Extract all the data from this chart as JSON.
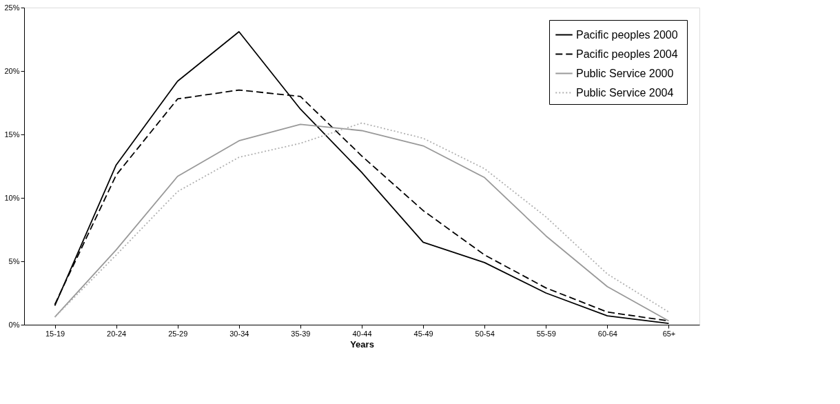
{
  "chart_data": {
    "type": "line",
    "xlabel": "Years",
    "categories": [
      "15-19",
      "20-24",
      "25-29",
      "30-34",
      "35-39",
      "40-44",
      "45-49",
      "50-54",
      "55-59",
      "60-64",
      "65+"
    ],
    "series": [
      {
        "name": "Pacific  peoples 2000",
        "color": "#000000",
        "line_style": "solid",
        "values": [
          1.5,
          12.6,
          19.2,
          23.1,
          17.0,
          12.0,
          6.5,
          4.9,
          2.5,
          0.7,
          0.1
        ]
      },
      {
        "name": "Pacific  peoples 2004",
        "color": "#000000",
        "line_style": "dashed",
        "values": [
          1.6,
          11.8,
          17.8,
          18.5,
          18.0,
          13.3,
          9.0,
          5.5,
          2.9,
          1.0,
          0.3
        ]
      },
      {
        "name": "Public Service  2000",
        "color": "#999999",
        "line_style": "solid",
        "values": [
          0.6,
          5.9,
          11.7,
          14.5,
          15.8,
          15.3,
          14.1,
          11.6,
          7.0,
          3.0,
          0.3
        ]
      },
      {
        "name": "Public Service  2004",
        "color": "#b0b0b0",
        "line_style": "dotted",
        "values": [
          0.6,
          5.5,
          10.5,
          13.2,
          14.3,
          15.9,
          14.7,
          12.3,
          8.5,
          4.0,
          1.0
        ]
      }
    ],
    "ylim": [
      0,
      25
    ],
    "yticks": [
      {
        "value": 0,
        "label": "0%"
      },
      {
        "value": 5,
        "label": "5%"
      },
      {
        "value": 10,
        "label": "10%"
      },
      {
        "value": 15,
        "label": "15%"
      },
      {
        "value": 20,
        "label": "20%"
      },
      {
        "value": 25,
        "label": "25%"
      }
    ],
    "grid": false,
    "legend": "top right"
  }
}
